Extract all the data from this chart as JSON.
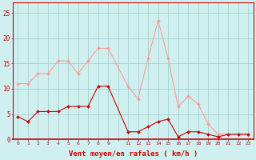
{
  "hours": [
    0,
    1,
    2,
    3,
    4,
    5,
    6,
    7,
    8,
    9,
    11,
    12,
    13,
    14,
    15,
    16,
    17,
    18,
    19,
    20,
    21,
    22,
    23
  ],
  "wind_mean": [
    4.5,
    3.5,
    5.5,
    5.5,
    5.5,
    6.5,
    6.5,
    6.5,
    10.5,
    10.5,
    1.5,
    1.5,
    2.5,
    3.5,
    4.0,
    0.5,
    1.5,
    1.5,
    1.0,
    0.5,
    1.0,
    1.0,
    1.0
  ],
  "wind_gust": [
    11.0,
    11.0,
    13.0,
    13.0,
    15.5,
    15.5,
    13.0,
    15.5,
    18.0,
    18.0,
    10.5,
    8.0,
    16.0,
    23.5,
    16.0,
    6.5,
    8.5,
    7.0,
    3.0,
    1.0,
    1.0,
    1.0,
    1.0
  ],
  "color_mean": "#cc0000",
  "color_gust": "#ff9999",
  "bg_color": "#d0f0f0",
  "grid_color": "#99cccc",
  "axis_color": "#cc0000",
  "xlabel": "Vent moyen/en rafales ( km/h )",
  "ylim": [
    0,
    27
  ],
  "yticks": [
    0,
    5,
    10,
    15,
    20,
    25
  ],
  "xlim": [
    -0.5,
    23.5
  ]
}
